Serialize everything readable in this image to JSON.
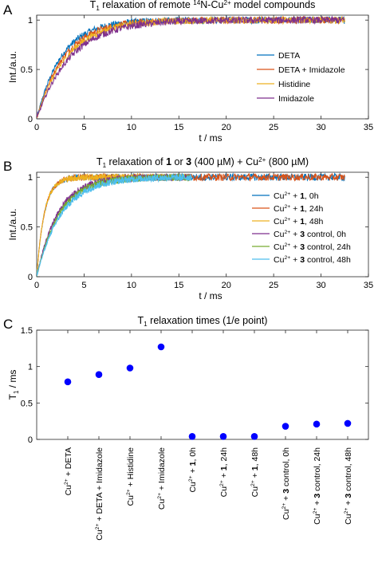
{
  "chart_data": [
    {
      "panel_label": "A",
      "type": "line",
      "title_parts": [
        "T",
        "1",
        " relaxation of remote ",
        "14",
        "N-Cu",
        "2+",
        " model compounds"
      ],
      "xlabel": "t / ms",
      "ylabel": "Int./a.u.",
      "xlim": [
        0,
        35
      ],
      "ylim": [
        0,
        1.05
      ],
      "xticks": [
        "0",
        "5",
        "10",
        "15",
        "20",
        "25",
        "30",
        "35"
      ],
      "yticks": [
        "0",
        "0.5",
        "1"
      ],
      "legend_position": "right",
      "series": [
        {
          "name": "DETA",
          "color": "#0072BD",
          "tau": 2.6,
          "end": 32.5
        },
        {
          "name": "DETA + Imidazole",
          "color": "#D95319",
          "tau": 2.9,
          "end": 32.5
        },
        {
          "name": "Histidine",
          "color": "#EDB120",
          "tau": 3.2,
          "end": 32.5
        },
        {
          "name": "Imidazole",
          "color": "#7E2F8E",
          "tau": 3.6,
          "end": 32.5
        }
      ]
    },
    {
      "panel_label": "B",
      "type": "line",
      "title_parts": [
        "T",
        "1",
        " relaxation of ",
        "1",
        " or ",
        "3",
        " (400 µM) + Cu",
        "2+",
        " (800 µM)"
      ],
      "xlabel": "t / ms",
      "ylabel": "Int./a.u.",
      "xlim": [
        0,
        35
      ],
      "ylim": [
        0,
        1.05
      ],
      "xticks": [
        "0",
        "5",
        "10",
        "15",
        "20",
        "25",
        "30",
        "35"
      ],
      "yticks": [
        "0",
        "0.5",
        "1"
      ],
      "legend_position": "right",
      "series": [
        {
          "name_parts": [
            "Cu",
            "2+",
            " + ",
            "1",
            ", 0h"
          ],
          "color": "#0072BD",
          "tau": 0.8,
          "end": 32.5
        },
        {
          "name_parts": [
            "Cu",
            "2+",
            " + ",
            "1",
            ", 24h"
          ],
          "color": "#D95319",
          "tau": 0.8,
          "end": 32.5
        },
        {
          "name_parts": [
            "Cu",
            "2+",
            " + ",
            "1",
            ", 48h"
          ],
          "color": "#EDB120",
          "tau": 0.8,
          "end": 16.3
        },
        {
          "name_parts": [
            "Cu",
            "2+",
            " + ",
            "3",
            " control, 0h"
          ],
          "color": "#7E2F8E",
          "tau": 2.2,
          "end": 16.3
        },
        {
          "name_parts": [
            "Cu",
            "2+",
            " + ",
            "3",
            " control, 24h"
          ],
          "color": "#77AC30",
          "tau": 2.4,
          "end": 16.3
        },
        {
          "name_parts": [
            "Cu",
            "2+",
            " + ",
            "3",
            " control, 48h"
          ],
          "color": "#4DBEEE",
          "tau": 2.6,
          "end": 16.3
        }
      ]
    },
    {
      "panel_label": "C",
      "type": "scatter",
      "title_parts": [
        "T",
        "1",
        " relaxation times (1/e point)"
      ],
      "ylabel_parts": [
        "T",
        "1",
        " / ms"
      ],
      "ylim": [
        0,
        1.5
      ],
      "yticks": [
        "0",
        "0.5",
        "1",
        "1.5"
      ],
      "color": "#0000FF",
      "categories": [
        {
          "parts": [
            "Cu",
            "2+",
            " + DETA"
          ],
          "value": 0.79
        },
        {
          "parts": [
            "Cu",
            "2+",
            " + DETA + Imidazole"
          ],
          "value": 0.89
        },
        {
          "parts": [
            "Cu",
            "2+",
            " + Histidine"
          ],
          "value": 0.98
        },
        {
          "parts": [
            "Cu",
            "2+",
            " + Imidazole"
          ],
          "value": 1.27
        },
        {
          "parts": [
            "Cu",
            "2+",
            " + ",
            "1",
            ", 0h"
          ],
          "value": 0.04
        },
        {
          "parts": [
            "Cu",
            "2+",
            " + ",
            "1",
            ", 24h"
          ],
          "value": 0.04
        },
        {
          "parts": [
            "Cu",
            "2+",
            " + ",
            "1",
            ", 48h"
          ],
          "value": 0.04
        },
        {
          "parts": [
            "Cu",
            "2+",
            " + ",
            "3",
            " control, 0h"
          ],
          "value": 0.18
        },
        {
          "parts": [
            "Cu",
            "2+",
            " + ",
            "3",
            " control, 24h"
          ],
          "value": 0.21
        },
        {
          "parts": [
            "Cu",
            "2+",
            " + ",
            "3",
            " control, 48h"
          ],
          "value": 0.22
        }
      ]
    }
  ]
}
